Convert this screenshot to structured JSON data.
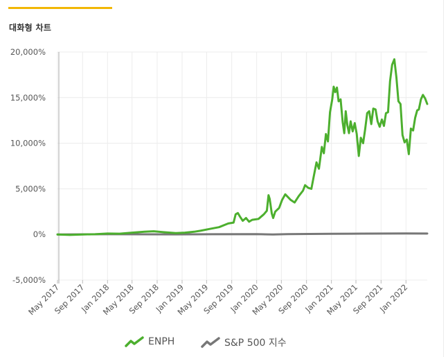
{
  "page": {
    "title": "대화형 차트"
  },
  "colors": {
    "accent": "#f2b705",
    "enph": "#4caf2e",
    "sp500": "#777777"
  },
  "chart_data": {
    "type": "line",
    "title": "",
    "xlabel": "",
    "ylabel": "",
    "ylim": [
      -5000,
      20000
    ],
    "xlim": [
      "2017-05-01",
      "2022-04-15"
    ],
    "y_ticks": [
      "20,000%",
      "15,000%",
      "10,000%",
      "5,000%",
      "0%",
      "-5,000%"
    ],
    "y_tick_values": [
      20000,
      15000,
      10000,
      5000,
      0,
      -5000
    ],
    "x_ticks": [
      "May 2017",
      "Sep 2017",
      "Jan 2018",
      "May 2018",
      "Sep 2018",
      "Jan 2019",
      "May 2019",
      "Sep 2019",
      "Jan 2020",
      "May 2020",
      "Sep 2020",
      "Jan 2021",
      "May 2021",
      "Sep 2021",
      "Jan 2022"
    ],
    "x_tick_values": [
      "2017-05-01",
      "2017-09-01",
      "2018-01-01",
      "2018-05-01",
      "2018-09-01",
      "2019-01-01",
      "2019-05-01",
      "2019-09-01",
      "2020-01-01",
      "2020-05-01",
      "2020-09-01",
      "2021-01-01",
      "2021-05-01",
      "2021-09-01",
      "2022-01-01"
    ],
    "grid": true,
    "legend_position": "bottom",
    "series": [
      {
        "name": "ENPH",
        "color": "#4caf2e",
        "points": [
          [
            "2017-05-01",
            0
          ],
          [
            "2017-07-01",
            -50
          ],
          [
            "2017-09-01",
            0
          ],
          [
            "2017-11-01",
            20
          ],
          [
            "2018-01-01",
            100
          ],
          [
            "2018-03-01",
            80
          ],
          [
            "2018-05-01",
            200
          ],
          [
            "2018-07-01",
            300
          ],
          [
            "2018-08-15",
            350
          ],
          [
            "2018-10-01",
            250
          ],
          [
            "2018-12-01",
            150
          ],
          [
            "2019-01-15",
            200
          ],
          [
            "2019-03-01",
            300
          ],
          [
            "2019-04-01",
            400
          ],
          [
            "2019-05-15",
            600
          ],
          [
            "2019-07-01",
            800
          ],
          [
            "2019-08-15",
            1200
          ],
          [
            "2019-09-10",
            1300
          ],
          [
            "2019-09-20",
            2200
          ],
          [
            "2019-10-01",
            2350
          ],
          [
            "2019-10-10",
            2000
          ],
          [
            "2019-10-25",
            1500
          ],
          [
            "2019-11-10",
            1800
          ],
          [
            "2019-11-25",
            1400
          ],
          [
            "2019-12-10",
            1600
          ],
          [
            "2020-01-10",
            1700
          ],
          [
            "2020-02-05",
            2200
          ],
          [
            "2020-02-20",
            2600
          ],
          [
            "2020-02-28",
            4300
          ],
          [
            "2020-03-05",
            3900
          ],
          [
            "2020-03-15",
            2300
          ],
          [
            "2020-03-22",
            1800
          ],
          [
            "2020-04-01",
            2500
          ],
          [
            "2020-04-20",
            2900
          ],
          [
            "2020-05-05",
            3800
          ],
          [
            "2020-05-20",
            4400
          ],
          [
            "2020-06-15",
            3800
          ],
          [
            "2020-07-05",
            3500
          ],
          [
            "2020-07-25",
            4200
          ],
          [
            "2020-08-15",
            4800
          ],
          [
            "2020-08-25",
            5400
          ],
          [
            "2020-09-10",
            5100
          ],
          [
            "2020-09-25",
            5000
          ],
          [
            "2020-10-05",
            6200
          ],
          [
            "2020-10-20",
            7900
          ],
          [
            "2020-11-01",
            7200
          ],
          [
            "2020-11-15",
            9600
          ],
          [
            "2020-11-25",
            8900
          ],
          [
            "2020-12-05",
            11000
          ],
          [
            "2020-12-15",
            10200
          ],
          [
            "2020-12-25",
            13400
          ],
          [
            "2021-01-05",
            14800
          ],
          [
            "2021-01-12",
            16200
          ],
          [
            "2021-01-20",
            15600
          ],
          [
            "2021-01-28",
            16100
          ],
          [
            "2021-02-05",
            14600
          ],
          [
            "2021-02-15",
            14800
          ],
          [
            "2021-02-25",
            12300
          ],
          [
            "2021-03-05",
            11100
          ],
          [
            "2021-03-12",
            13500
          ],
          [
            "2021-03-20",
            12000
          ],
          [
            "2021-03-28",
            11100
          ],
          [
            "2021-04-05",
            12400
          ],
          [
            "2021-04-15",
            11300
          ],
          [
            "2021-04-25",
            12200
          ],
          [
            "2021-05-05",
            11000
          ],
          [
            "2021-05-15",
            8600
          ],
          [
            "2021-05-25",
            10600
          ],
          [
            "2021-06-05",
            10000
          ],
          [
            "2021-06-15",
            11500
          ],
          [
            "2021-06-25",
            13300
          ],
          [
            "2021-07-05",
            13500
          ],
          [
            "2021-07-15",
            12100
          ],
          [
            "2021-07-25",
            13800
          ],
          [
            "2021-08-05",
            13700
          ],
          [
            "2021-08-15",
            12400
          ],
          [
            "2021-08-25",
            11800
          ],
          [
            "2021-09-05",
            12600
          ],
          [
            "2021-09-15",
            11900
          ],
          [
            "2021-09-25",
            13300
          ],
          [
            "2021-10-05",
            13400
          ],
          [
            "2021-10-15",
            16800
          ],
          [
            "2021-10-25",
            18600
          ],
          [
            "2021-11-05",
            19200
          ],
          [
            "2021-11-15",
            17200
          ],
          [
            "2021-11-25",
            14600
          ],
          [
            "2021-12-05",
            14300
          ],
          [
            "2021-12-15",
            10900
          ],
          [
            "2021-12-25",
            10100
          ],
          [
            "2022-01-05",
            10400
          ],
          [
            "2022-01-15",
            8800
          ],
          [
            "2022-01-25",
            11600
          ],
          [
            "2022-02-05",
            11400
          ],
          [
            "2022-02-15",
            12800
          ],
          [
            "2022-02-25",
            13600
          ],
          [
            "2022-03-05",
            13700
          ],
          [
            "2022-03-15",
            14800
          ],
          [
            "2022-03-25",
            15300
          ],
          [
            "2022-04-05",
            14900
          ],
          [
            "2022-04-15",
            14300
          ]
        ]
      },
      {
        "name": "S&P 500 지수",
        "color": "#777777",
        "points": [
          [
            "2017-05-01",
            0
          ],
          [
            "2018-01-01",
            20
          ],
          [
            "2018-12-01",
            5
          ],
          [
            "2019-06-01",
            25
          ],
          [
            "2020-01-01",
            40
          ],
          [
            "2020-03-20",
            -10
          ],
          [
            "2020-06-01",
            30
          ],
          [
            "2021-01-01",
            70
          ],
          [
            "2021-06-01",
            90
          ],
          [
            "2022-01-01",
            110
          ],
          [
            "2022-04-15",
            100
          ]
        ]
      }
    ]
  },
  "legend": {
    "items": [
      {
        "label": "ENPH",
        "icon": "line-trend-icon",
        "color": "#4caf2e"
      },
      {
        "label": "S&P 500 지수",
        "icon": "line-trend-icon",
        "color": "#777777"
      }
    ]
  }
}
